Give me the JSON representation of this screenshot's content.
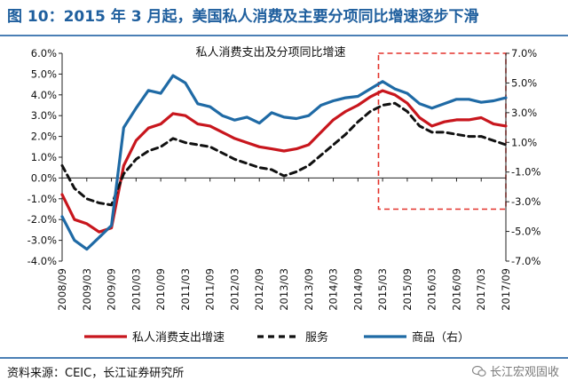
{
  "figure_title": "图 10：2015 年 3 月起，美国私人消费及主要分项同比增速逐步下滑",
  "source_text": "资料来源：CEIC，长江证券研究所",
  "watermark_text": "长江宏观固收",
  "watermark_icon": "wechat-icon",
  "colors": {
    "title": "#1f5f9e",
    "pce": "#c8161d",
    "services": "#111111",
    "goods": "#1f6aa5",
    "highlight_box": "#e3322b",
    "axis": "#222222"
  },
  "chart_data": {
    "type": "line",
    "title": "私人消费支出及分项同比增速",
    "xlabel": "",
    "ylabel": "",
    "x_tick_labels": [
      "2008/09",
      "2009/03",
      "2009/09",
      "2010/03",
      "2010/09",
      "2011/03",
      "2011/09",
      "2012/03",
      "2012/09",
      "2013/03",
      "2013/09",
      "2014/03",
      "2014/09",
      "2015/03",
      "2015/09",
      "2016/03",
      "2016/09",
      "2017/03",
      "2017/09"
    ],
    "x_range": [
      "2008/09",
      "2017/09"
    ],
    "y_left": {
      "min": -4.0,
      "max": 6.0,
      "ticks": [
        "-4.0%",
        "-3.0%",
        "-2.0%",
        "-1.0%",
        "0.0%",
        "1.0%",
        "2.0%",
        "3.0%",
        "4.0%",
        "5.0%",
        "6.0%"
      ]
    },
    "y_right": {
      "min": -7.0,
      "max": 7.0,
      "ticks": [
        "-7.0%",
        "-5.0%",
        "-3.0%",
        "-1.0%",
        "1.0%",
        "3.0%",
        "5.0%",
        "7.0%"
      ]
    },
    "grid": false,
    "legend_position": "bottom",
    "highlight_box": {
      "x_from": "2015/02",
      "x_to": "2017/09",
      "y_from": -1.5,
      "y_to": 6.0,
      "style": "dashed"
    },
    "series": [
      {
        "name": "私人消费支出增速",
        "axis": "left",
        "style": "solid",
        "points": [
          [
            "2008/09",
            -0.8
          ],
          [
            "2008/12",
            -2.0
          ],
          [
            "2009/03",
            -2.2
          ],
          [
            "2009/06",
            -2.6
          ],
          [
            "2009/09",
            -2.4
          ],
          [
            "2009/12",
            0.6
          ],
          [
            "2010/03",
            1.8
          ],
          [
            "2010/06",
            2.4
          ],
          [
            "2010/09",
            2.6
          ],
          [
            "2010/12",
            3.1
          ],
          [
            "2011/03",
            3.0
          ],
          [
            "2011/06",
            2.6
          ],
          [
            "2011/09",
            2.5
          ],
          [
            "2011/12",
            2.2
          ],
          [
            "2012/03",
            1.9
          ],
          [
            "2012/06",
            1.7
          ],
          [
            "2012/09",
            1.5
          ],
          [
            "2012/12",
            1.4
          ],
          [
            "2013/03",
            1.3
          ],
          [
            "2013/06",
            1.4
          ],
          [
            "2013/09",
            1.6
          ],
          [
            "2013/12",
            2.2
          ],
          [
            "2014/03",
            2.8
          ],
          [
            "2014/06",
            3.2
          ],
          [
            "2014/09",
            3.5
          ],
          [
            "2014/12",
            3.9
          ],
          [
            "2015/03",
            4.2
          ],
          [
            "2015/06",
            4.0
          ],
          [
            "2015/09",
            3.6
          ],
          [
            "2015/12",
            2.9
          ],
          [
            "2016/03",
            2.5
          ],
          [
            "2016/06",
            2.7
          ],
          [
            "2016/09",
            2.8
          ],
          [
            "2016/12",
            2.8
          ],
          [
            "2017/03",
            2.9
          ],
          [
            "2017/06",
            2.6
          ],
          [
            "2017/09",
            2.5
          ]
        ]
      },
      {
        "name": "服务",
        "axis": "left",
        "style": "dashed",
        "points": [
          [
            "2008/09",
            0.6
          ],
          [
            "2008/12",
            -0.5
          ],
          [
            "2009/03",
            -1.0
          ],
          [
            "2009/06",
            -1.2
          ],
          [
            "2009/09",
            -1.3
          ],
          [
            "2009/12",
            0.2
          ],
          [
            "2010/03",
            0.9
          ],
          [
            "2010/06",
            1.3
          ],
          [
            "2010/09",
            1.5
          ],
          [
            "2010/12",
            1.9
          ],
          [
            "2011/03",
            1.7
          ],
          [
            "2011/06",
            1.6
          ],
          [
            "2011/09",
            1.5
          ],
          [
            "2011/12",
            1.2
          ],
          [
            "2012/03",
            0.9
          ],
          [
            "2012/06",
            0.7
          ],
          [
            "2012/09",
            0.5
          ],
          [
            "2012/12",
            0.4
          ],
          [
            "2013/03",
            0.1
          ],
          [
            "2013/06",
            0.3
          ],
          [
            "2013/09",
            0.6
          ],
          [
            "2013/12",
            1.1
          ],
          [
            "2014/03",
            1.6
          ],
          [
            "2014/06",
            2.1
          ],
          [
            "2014/09",
            2.7
          ],
          [
            "2014/12",
            3.2
          ],
          [
            "2015/03",
            3.5
          ],
          [
            "2015/06",
            3.6
          ],
          [
            "2015/09",
            3.2
          ],
          [
            "2015/12",
            2.5
          ],
          [
            "2016/03",
            2.2
          ],
          [
            "2016/06",
            2.2
          ],
          [
            "2016/09",
            2.1
          ],
          [
            "2016/12",
            2.0
          ],
          [
            "2017/03",
            2.0
          ],
          [
            "2017/06",
            1.8
          ],
          [
            "2017/09",
            1.6
          ]
        ]
      },
      {
        "name": "商品（右）",
        "axis": "right",
        "style": "solid",
        "points": [
          [
            "2008/09",
            -4.0
          ],
          [
            "2008/12",
            -5.6
          ],
          [
            "2009/03",
            -6.2
          ],
          [
            "2009/06",
            -5.4
          ],
          [
            "2009/09",
            -4.6
          ],
          [
            "2009/12",
            2.0
          ],
          [
            "2010/03",
            3.3
          ],
          [
            "2010/06",
            4.5
          ],
          [
            "2010/09",
            4.3
          ],
          [
            "2010/12",
            5.5
          ],
          [
            "2011/03",
            5.0
          ],
          [
            "2011/06",
            3.6
          ],
          [
            "2011/09",
            3.4
          ],
          [
            "2011/12",
            2.8
          ],
          [
            "2012/03",
            2.5
          ],
          [
            "2012/06",
            2.7
          ],
          [
            "2012/09",
            2.3
          ],
          [
            "2012/12",
            3.0
          ],
          [
            "2013/03",
            2.7
          ],
          [
            "2013/06",
            2.6
          ],
          [
            "2013/09",
            2.8
          ],
          [
            "2013/12",
            3.5
          ],
          [
            "2014/03",
            3.8
          ],
          [
            "2014/06",
            4.0
          ],
          [
            "2014/09",
            4.1
          ],
          [
            "2014/12",
            4.6
          ],
          [
            "2015/03",
            5.1
          ],
          [
            "2015/06",
            4.6
          ],
          [
            "2015/09",
            4.3
          ],
          [
            "2015/12",
            3.6
          ],
          [
            "2016/03",
            3.3
          ],
          [
            "2016/06",
            3.6
          ],
          [
            "2016/09",
            3.9
          ],
          [
            "2016/12",
            3.9
          ],
          [
            "2017/03",
            3.7
          ],
          [
            "2017/06",
            3.8
          ],
          [
            "2017/09",
            4.0
          ]
        ]
      }
    ],
    "legend": [
      {
        "label": "私人消费支出增速",
        "series": 0
      },
      {
        "label": "服务",
        "series": 1
      },
      {
        "label": "商品（右）",
        "series": 2
      }
    ]
  }
}
